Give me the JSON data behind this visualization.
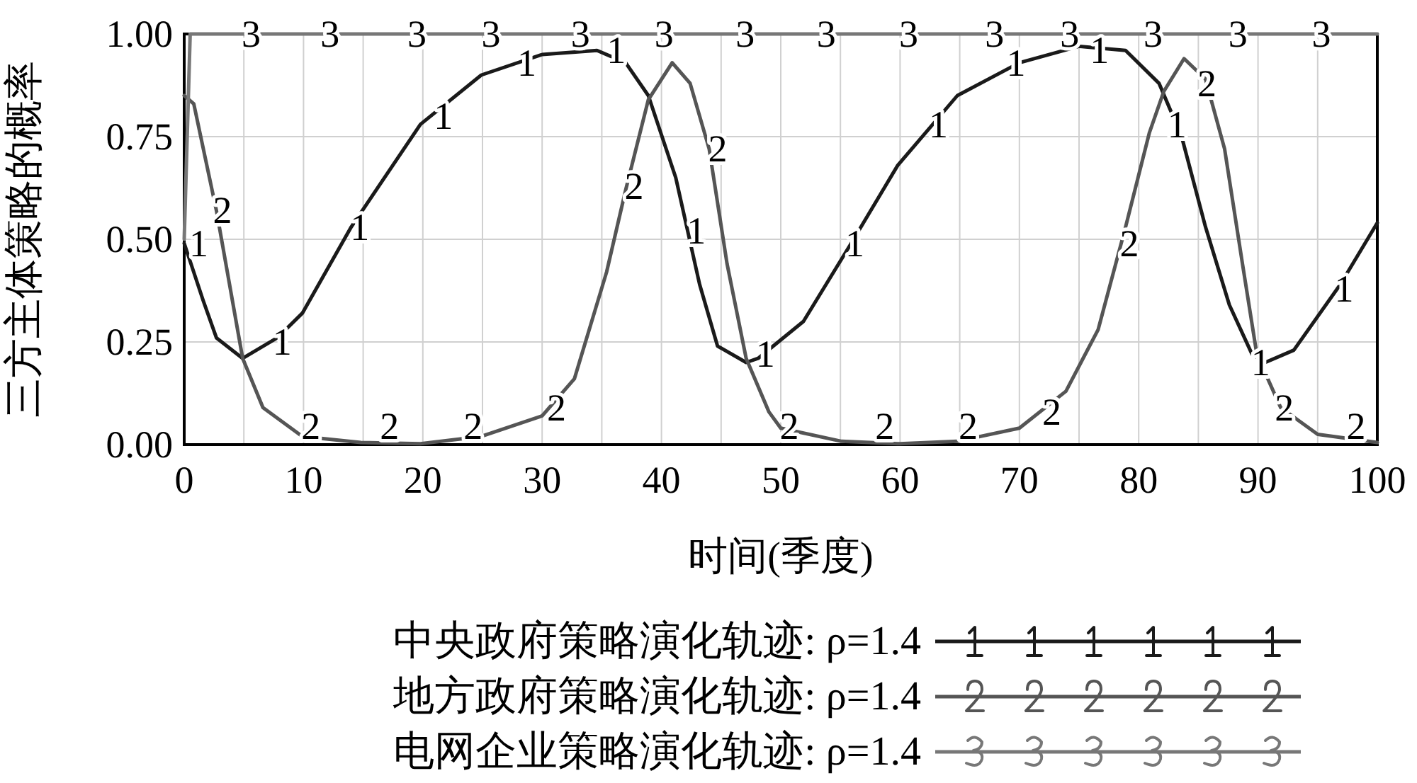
{
  "chart_data": {
    "type": "line",
    "xlabel": "时间(季度)",
    "ylabel": "三方主体策略的概率",
    "xlim": [
      0,
      100
    ],
    "xticks": [
      0,
      {
        "value": 5,
        "label": null
      },
      10,
      {
        "value": 15,
        "label": null
      },
      20,
      {
        "value": 25,
        "label": null
      },
      30,
      {
        "value": 35,
        "label": null
      },
      40,
      {
        "value": 45,
        "label": null
      },
      50,
      {
        "value": 55,
        "label": null
      },
      60,
      {
        "value": 65,
        "label": null
      },
      70,
      {
        "value": 75,
        "label": null
      },
      80,
      {
        "value": 85,
        "label": null
      },
      90,
      {
        "value": 95,
        "label": null
      },
      100
    ],
    "ylim": [
      0,
      1
    ],
    "yticks": [
      {
        "value": 0,
        "label": "0.00"
      },
      {
        "value": 0.25,
        "label": "0.25"
      },
      {
        "value": 0.5,
        "label": "0.50"
      },
      {
        "value": 0.75,
        "label": "0.75"
      },
      {
        "value": 1,
        "label": "1.00"
      }
    ],
    "grid": true,
    "legend": "bottom",
    "annotations": [
      {
        "text": "1",
        "x": 0.5,
        "y": 0.49
      },
      {
        "text": "1",
        "x": 7.5,
        "y": 0.25
      },
      {
        "text": "1",
        "x": 14,
        "y": 0.53
      },
      {
        "text": "1",
        "x": 21,
        "y": 0.8
      },
      {
        "text": "1",
        "x": 28,
        "y": 0.93
      },
      {
        "text": "1",
        "x": 35.5,
        "y": 0.96
      },
      {
        "text": "1",
        "x": 42.2,
        "y": 0.52
      },
      {
        "text": "1",
        "x": 48,
        "y": 0.22
      },
      {
        "text": "1",
        "x": 55.5,
        "y": 0.49
      },
      {
        "text": "1",
        "x": 62.5,
        "y": 0.78
      },
      {
        "text": "1",
        "x": 69,
        "y": 0.93
      },
      {
        "text": "1",
        "x": 76,
        "y": 0.96
      },
      {
        "text": "1",
        "x": 82.5,
        "y": 0.78
      },
      {
        "text": "1",
        "x": 89.5,
        "y": 0.2
      },
      {
        "text": "1",
        "x": 96.5,
        "y": 0.38
      },
      {
        "text": "2",
        "x": 2.5,
        "y": 0.57
      },
      {
        "text": "2",
        "x": 9.9,
        "y": 0.02
      },
      {
        "text": "2",
        "x": 16.5,
        "y": 0.005
      },
      {
        "text": "2",
        "x": 23.5,
        "y": 0.01
      },
      {
        "text": "2",
        "x": 30.5,
        "y": 0.09
      },
      {
        "text": "2",
        "x": 37,
        "y": 0.63
      },
      {
        "text": "2",
        "x": 44,
        "y": 0.72
      },
      {
        "text": "2",
        "x": 50,
        "y": 0.04
      },
      {
        "text": "2",
        "x": 58,
        "y": 0.005
      },
      {
        "text": "2",
        "x": 65,
        "y": 0.008
      },
      {
        "text": "2",
        "x": 72,
        "y": 0.08
      },
      {
        "text": "2",
        "x": 78.5,
        "y": 0.49
      },
      {
        "text": "2",
        "x": 85,
        "y": 0.88
      },
      {
        "text": "2",
        "x": 91.5,
        "y": 0.09
      },
      {
        "text": "2",
        "x": 97.5,
        "y": 0.015
      },
      {
        "text": "3",
        "x": 4.9,
        "y": 1
      },
      {
        "text": "3",
        "x": 11.5,
        "y": 1
      },
      {
        "text": "3",
        "x": 18.8,
        "y": 1
      },
      {
        "text": "3",
        "x": 25,
        "y": 1
      },
      {
        "text": "3",
        "x": 32.5,
        "y": 1
      },
      {
        "text": "3",
        "x": 39.5,
        "y": 1
      },
      {
        "text": "3",
        "x": 46.3,
        "y": 1
      },
      {
        "text": "3",
        "x": 53.1,
        "y": 1
      },
      {
        "text": "3",
        "x": 60,
        "y": 1
      },
      {
        "text": "3",
        "x": 67.2,
        "y": 1
      },
      {
        "text": "3",
        "x": 73.5,
        "y": 1
      },
      {
        "text": "3",
        "x": 80.5,
        "y": 1
      },
      {
        "text": "3",
        "x": 87.6,
        "y": 1
      },
      {
        "text": "3",
        "x": 94.6,
        "y": 1
      }
    ],
    "series": [
      {
        "name": "中央政府策略演化轨迹: ρ=1.4",
        "color": "#1a1a1a",
        "x": [
          0,
          1.6,
          2.7,
          4.9,
          7.8,
          9.9,
          14,
          19.8,
          24.9,
          30,
          34.6,
          37,
          38.9,
          41.2,
          43.2,
          44.7,
          47.1,
          48.1,
          51.9,
          55.9,
          59.8,
          64.8,
          70,
          75,
          78.9,
          81.7,
          83.6,
          85.6,
          87.6,
          89.5,
          90.6,
          93,
          96.9,
          100
        ],
        "values": [
          0.49,
          0.35,
          0.26,
          0.21,
          0.26,
          0.32,
          0.53,
          0.78,
          0.9,
          0.95,
          0.96,
          0.93,
          0.85,
          0.65,
          0.39,
          0.24,
          0.2,
          0.21,
          0.3,
          0.49,
          0.68,
          0.85,
          0.93,
          0.97,
          0.96,
          0.88,
          0.75,
          0.53,
          0.34,
          0.22,
          0.2,
          0.23,
          0.39,
          0.54
        ]
      },
      {
        "name": "地方政府策略演化轨迹: ρ=1.4",
        "color": "#555555",
        "x": [
          0,
          0.8,
          2.7,
          4.9,
          6.6,
          9.9,
          14.8,
          19.8,
          24.9,
          30,
          32.7,
          35.4,
          37,
          38.9,
          40.9,
          42.4,
          44,
          45.5,
          47.1,
          49,
          50,
          55.1,
          59.8,
          64.8,
          70,
          73.9,
          76.6,
          78.9,
          80.9,
          82.1,
          83.8,
          85.6,
          87.2,
          88.7,
          89.9,
          91.9,
          95,
          100
        ],
        "values": [
          0.85,
          0.83,
          0.57,
          0.21,
          0.09,
          0.02,
          0.005,
          0.002,
          0.02,
          0.07,
          0.16,
          0.42,
          0.62,
          0.84,
          0.93,
          0.88,
          0.72,
          0.44,
          0.21,
          0.08,
          0.04,
          0.008,
          0.002,
          0.008,
          0.04,
          0.13,
          0.28,
          0.53,
          0.76,
          0.86,
          0.94,
          0.89,
          0.72,
          0.44,
          0.22,
          0.09,
          0.025,
          0.005
        ]
      },
      {
        "name": "电网企业策略演化轨迹: ρ=1.4",
        "color": "#777777",
        "x": [
          0,
          0.5,
          100
        ],
        "values": [
          0.5,
          1,
          1
        ]
      }
    ]
  }
}
